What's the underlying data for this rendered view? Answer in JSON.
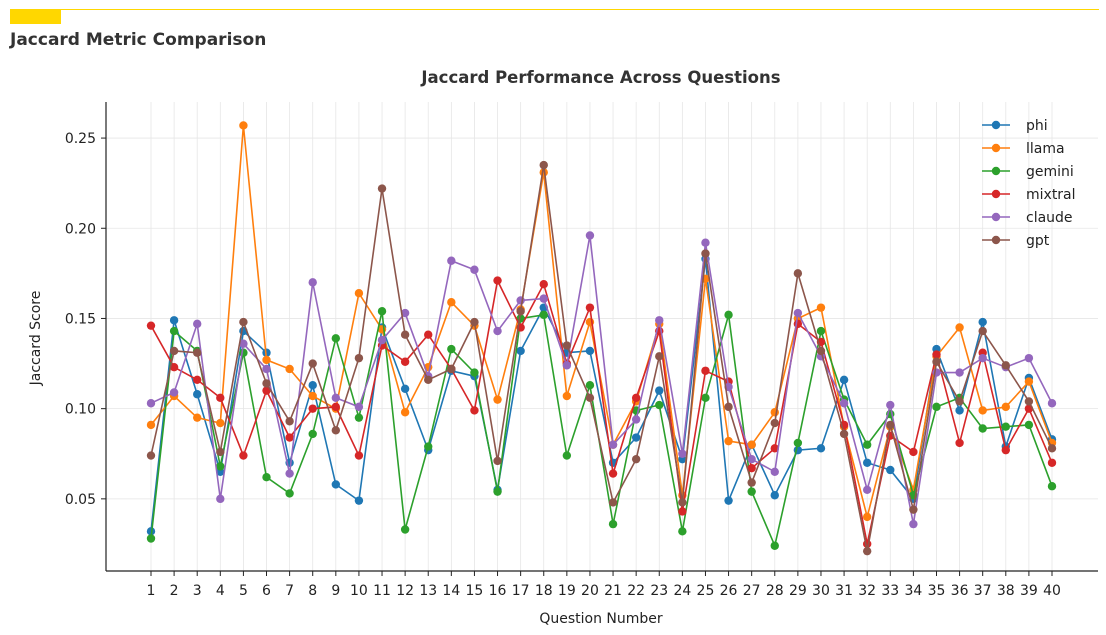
{
  "header": {
    "title": "Jaccard Metric Comparison",
    "accent_color": "#ffd700"
  },
  "chart_data": {
    "type": "line",
    "title": "Jaccard Performance Across Questions",
    "xlabel": "Question Number",
    "ylabel": "Jaccard Score",
    "ylim": [
      0.01,
      0.27
    ],
    "yticks": [
      0.05,
      0.1,
      0.15,
      0.2,
      0.25
    ],
    "ytick_labels": [
      "0.05",
      "0.10",
      "0.15",
      "0.20",
      "0.25"
    ],
    "grid": true,
    "legend_position": "top-right",
    "x": [
      1,
      2,
      3,
      4,
      5,
      6,
      7,
      8,
      9,
      10,
      11,
      12,
      13,
      14,
      15,
      16,
      17,
      18,
      19,
      20,
      21,
      22,
      23,
      24,
      25,
      26,
      27,
      28,
      29,
      30,
      31,
      32,
      33,
      34,
      35,
      36,
      37,
      38,
      39,
      40
    ],
    "series": [
      {
        "name": "phi",
        "color": "#1f77b4",
        "values": [
          0.032,
          0.149,
          0.108,
          0.065,
          0.143,
          0.131,
          0.07,
          0.113,
          0.058,
          0.049,
          0.145,
          0.111,
          0.077,
          0.121,
          0.118,
          0.055,
          0.132,
          0.156,
          0.131,
          0.132,
          0.07,
          0.084,
          0.11,
          0.072,
          0.183,
          0.049,
          0.08,
          0.052,
          0.077,
          0.078,
          0.116,
          0.07,
          0.066,
          0.05,
          0.133,
          0.099,
          0.148,
          0.079,
          0.117,
          0.083
        ]
      },
      {
        "name": "llama",
        "color": "#ff7f0e",
        "values": [
          0.091,
          0.107,
          0.095,
          0.092,
          0.257,
          0.127,
          0.122,
          0.107,
          0.1,
          0.164,
          0.144,
          0.098,
          0.123,
          0.159,
          0.146,
          0.105,
          0.155,
          0.231,
          0.107,
          0.148,
          0.08,
          0.104,
          0.147,
          0.052,
          0.172,
          0.082,
          0.08,
          0.098,
          0.15,
          0.156,
          0.09,
          0.04,
          0.09,
          0.055,
          0.129,
          0.145,
          0.099,
          0.101,
          0.115,
          0.081
        ]
      },
      {
        "name": "gemini",
        "color": "#2ca02c",
        "values": [
          0.028,
          0.143,
          0.132,
          0.068,
          0.131,
          0.062,
          0.053,
          0.086,
          0.139,
          0.095,
          0.154,
          0.033,
          0.079,
          0.133,
          0.12,
          0.054,
          0.15,
          0.152,
          0.074,
          0.113,
          0.036,
          0.099,
          0.102,
          0.032,
          0.106,
          0.152,
          0.054,
          0.024,
          0.081,
          0.143,
          0.105,
          0.08,
          0.097,
          0.052,
          0.101,
          0.106,
          0.089,
          0.09,
          0.091,
          0.057
        ]
      },
      {
        "name": "mixtral",
        "color": "#d62728",
        "values": [
          0.146,
          0.123,
          0.116,
          0.106,
          0.074,
          0.11,
          0.084,
          0.1,
          0.101,
          0.074,
          0.135,
          0.126,
          0.141,
          0.122,
          0.099,
          0.171,
          0.145,
          0.169,
          0.125,
          0.156,
          0.064,
          0.106,
          0.143,
          0.043,
          0.121,
          0.115,
          0.067,
          0.078,
          0.147,
          0.137,
          0.091,
          0.025,
          0.085,
          0.076,
          0.13,
          0.081,
          0.131,
          0.077,
          0.1,
          0.07
        ]
      },
      {
        "name": "claude",
        "color": "#9467bd",
        "values": [
          0.103,
          0.109,
          0.147,
          0.05,
          0.136,
          0.122,
          0.064,
          0.17,
          0.106,
          0.101,
          0.138,
          0.153,
          0.118,
          0.182,
          0.177,
          0.143,
          0.16,
          0.161,
          0.124,
          0.196,
          0.08,
          0.094,
          0.149,
          0.075,
          0.192,
          0.112,
          0.072,
          0.065,
          0.153,
          0.129,
          0.103,
          0.055,
          0.102,
          0.036,
          0.12,
          0.12,
          0.128,
          0.123,
          0.128,
          0.103
        ]
      },
      {
        "name": "gpt",
        "color": "#8c564b",
        "values": [
          0.074,
          0.132,
          0.131,
          0.076,
          0.148,
          0.114,
          0.093,
          0.125,
          0.088,
          0.128,
          0.222,
          0.141,
          0.116,
          0.122,
          0.148,
          0.071,
          0.154,
          0.235,
          0.135,
          0.106,
          0.048,
          0.072,
          0.129,
          0.048,
          0.186,
          0.101,
          0.059,
          0.092,
          0.175,
          0.132,
          0.086,
          0.021,
          0.091,
          0.044,
          0.126,
          0.104,
          0.143,
          0.124,
          0.104,
          0.078
        ]
      }
    ]
  }
}
